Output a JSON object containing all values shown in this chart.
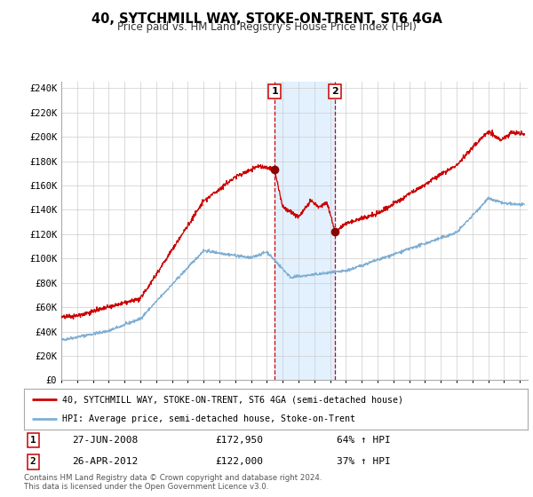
{
  "title": "40, SYTCHMILL WAY, STOKE-ON-TRENT, ST6 4GA",
  "subtitle": "Price paid vs. HM Land Registry's House Price Index (HPI)",
  "ylabel_ticks": [
    "£0",
    "£20K",
    "£40K",
    "£60K",
    "£80K",
    "£100K",
    "£120K",
    "£140K",
    "£160K",
    "£180K",
    "£200K",
    "£220K",
    "£240K"
  ],
  "ytick_values": [
    0,
    20000,
    40000,
    60000,
    80000,
    100000,
    120000,
    140000,
    160000,
    180000,
    200000,
    220000,
    240000
  ],
  "ylim": [
    0,
    245000
  ],
  "background_color": "#ffffff",
  "grid_color": "#cccccc",
  "plot_bg_color": "#ffffff",
  "red_line_color": "#cc0000",
  "blue_line_color": "#7fafd4",
  "shade_color": "#ddeeff",
  "marker1_date_x": 2008.49,
  "marker1_price": 172950,
  "marker2_date_x": 2012.32,
  "marker2_price": 122000,
  "annotation1": "27-JUN-2008",
  "annotation1_price": "£172,950",
  "annotation1_hpi": "64% ↑ HPI",
  "annotation2": "26-APR-2012",
  "annotation2_price": "£122,000",
  "annotation2_hpi": "37% ↑ HPI",
  "legend_red": "40, SYTCHMILL WAY, STOKE-ON-TRENT, ST6 4GA (semi-detached house)",
  "legend_blue": "HPI: Average price, semi-detached house, Stoke-on-Trent",
  "footnote": "Contains HM Land Registry data © Crown copyright and database right 2024.\nThis data is licensed under the Open Government Licence v3.0.",
  "xmin": 1995,
  "xmax": 2024.5
}
